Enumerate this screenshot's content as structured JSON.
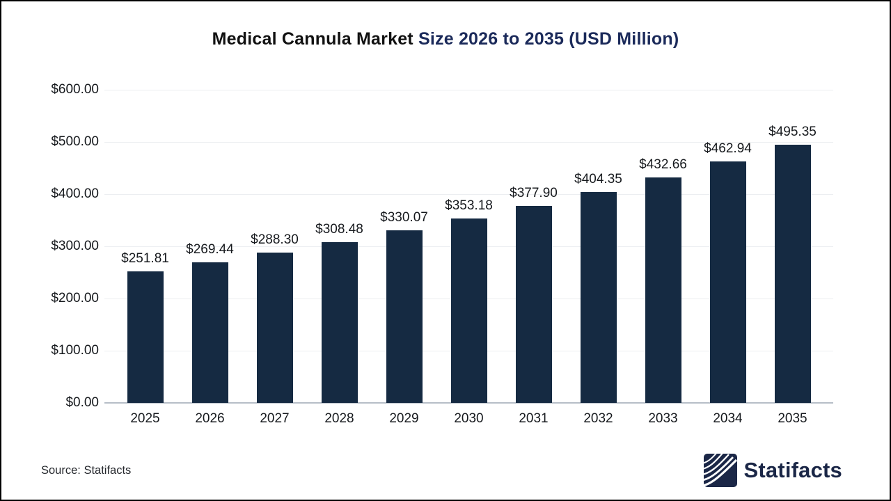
{
  "title": {
    "part1": "Medical Cannula Market ",
    "part2": "Size 2026 to 2035 (USD Million)"
  },
  "chart_data": {
    "type": "bar",
    "title": "Medical Cannula Market Size 2026 to 2035 (USD Million)",
    "categories": [
      "2025",
      "2026",
      "2027",
      "2028",
      "2029",
      "2030",
      "2031",
      "2032",
      "2033",
      "2034",
      "2035"
    ],
    "values": [
      251.81,
      269.44,
      288.3,
      308.48,
      330.07,
      353.18,
      377.9,
      404.35,
      432.66,
      462.94,
      495.35
    ],
    "value_labels": [
      "$251.81",
      "$269.44",
      "$288.30",
      "$308.48",
      "$330.07",
      "$353.18",
      "$377.90",
      "$404.35",
      "$432.66",
      "$462.94",
      "$495.35"
    ],
    "y_tick_labels": [
      "$0.00",
      "$100.00",
      "$200.00",
      "$300.00",
      "$400.00",
      "$500.00",
      "$600.00"
    ],
    "y_tick_values": [
      0,
      100,
      200,
      300,
      400,
      500,
      600
    ],
    "ylim": [
      0,
      600
    ],
    "xlabel": "",
    "ylabel": "",
    "grid": true,
    "legend": "none",
    "bar_color": "#152a42",
    "units": "USD Million"
  },
  "footer": {
    "source_note": "Source: Statifacts",
    "brand_name": "Statifacts"
  },
  "colors": {
    "bar": "#152a42",
    "title_text": "#111111",
    "title_highlight": "#1b2a5a",
    "gridline": "#eceef1",
    "axis_line": "#b7bec7",
    "label_text": "#16191d",
    "brand_navy": "#1b2747"
  }
}
